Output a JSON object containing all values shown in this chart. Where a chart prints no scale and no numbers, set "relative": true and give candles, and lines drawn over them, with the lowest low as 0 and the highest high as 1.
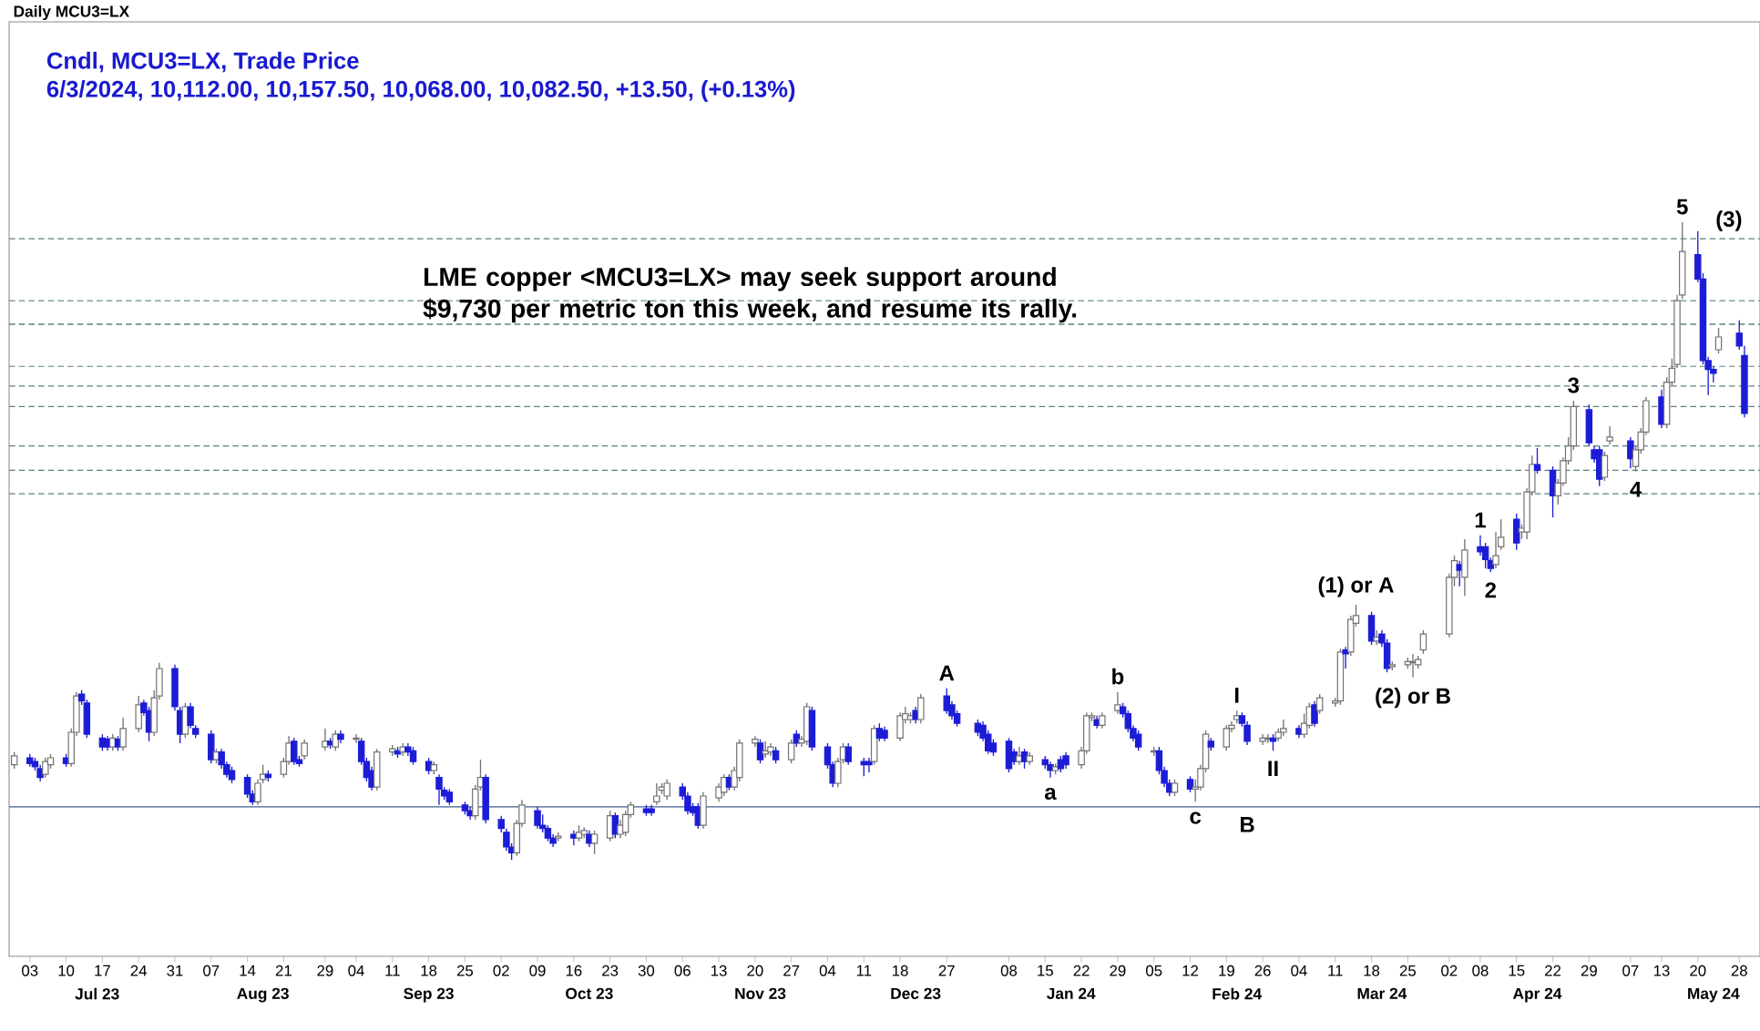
{
  "chart_data": {
    "type": "candlestick",
    "relative": true,
    "title": "Daily MCU3=LX",
    "subtitle": "Cndl, MCU3=LX, Trade Price",
    "annotations": [
      "6/3/2024, 10,112.00, 10,157.50, 10,068.00, 10,082.50, +13.50, (+0.13%)",
      "LME copper <MCU3=LX> may seek support around $9,730  per metric ton this week, and resume its rally.",
      {
        "text": "A",
        "x": "2023-12-27",
        "y": 0.269
      },
      {
        "text": "a",
        "x": "2024-01-16",
        "y": 0.129
      },
      {
        "text": "b",
        "x": "2024-01-29",
        "y": 0.263
      },
      {
        "text": "c",
        "x": "2024-02-13",
        "y": 0.091
      },
      {
        "text": "B",
        "x": "2024-02-23",
        "y": 0.083
      },
      {
        "text": "I",
        "x": "2024-02-21",
        "y": 0.234
      },
      {
        "text": "II",
        "x": "2024-02-28",
        "y": 0.171
      },
      {
        "text": "(1) or A",
        "x": "2024-03-15",
        "y": 0.4
      },
      {
        "text": "(2) or B",
        "x": "2024-03-26",
        "y": 0.286
      },
      {
        "text": "1",
        "x": "2024-04-08",
        "y": 0.509
      },
      {
        "text": "2",
        "x": "2024-04-10",
        "y": 0.451
      },
      {
        "text": "3",
        "x": "2024-04-26",
        "y": 0.72
      },
      {
        "text": "4",
        "x": "2024-05-08",
        "y": 0.609
      },
      {
        "text": "5",
        "x": "2024-05-17",
        "y": 1.0
      },
      {
        "text": "(3)",
        "x": "2024-05-26",
        "y": 0.974
      }
    ],
    "xlim": [
      "2023-06-29",
      "2024-06-01"
    ],
    "xticks": [
      {
        "value": "2023-07-03",
        "label": "03"
      },
      {
        "value": "2023-07-10",
        "label": "10"
      },
      {
        "value": "2023-07-17",
        "label": "17"
      },
      {
        "value": "2023-07-24",
        "label": "24"
      },
      {
        "value": "2023-07-31",
        "label": "31"
      },
      {
        "value": "2023-08-07",
        "label": "07"
      },
      {
        "value": "2023-08-14",
        "label": "14"
      },
      {
        "value": "2023-08-21",
        "label": "21"
      },
      {
        "value": "2023-08-29",
        "label": "29"
      },
      {
        "value": "2023-09-04",
        "label": "04"
      },
      {
        "value": "2023-09-11",
        "label": "11"
      },
      {
        "value": "2023-09-18",
        "label": "18"
      },
      {
        "value": "2023-09-25",
        "label": "25"
      },
      {
        "value": "2023-10-02",
        "label": "02"
      },
      {
        "value": "2023-10-09",
        "label": "09"
      },
      {
        "value": "2023-10-16",
        "label": "16"
      },
      {
        "value": "2023-10-23",
        "label": "23"
      },
      {
        "value": "2023-10-30",
        "label": "30"
      },
      {
        "value": "2023-11-06",
        "label": "06"
      },
      {
        "value": "2023-11-13",
        "label": "13"
      },
      {
        "value": "2023-11-20",
        "label": "20"
      },
      {
        "value": "2023-11-27",
        "label": "27"
      },
      {
        "value": "2023-12-04",
        "label": "04"
      },
      {
        "value": "2023-12-11",
        "label": "11"
      },
      {
        "value": "2023-12-18",
        "label": "18"
      },
      {
        "value": "2023-12-27",
        "label": "27"
      },
      {
        "value": "2024-01-08",
        "label": "08"
      },
      {
        "value": "2024-01-15",
        "label": "15"
      },
      {
        "value": "2024-01-22",
        "label": "22"
      },
      {
        "value": "2024-01-29",
        "label": "29"
      },
      {
        "value": "2024-02-05",
        "label": "05"
      },
      {
        "value": "2024-02-12",
        "label": "12"
      },
      {
        "value": "2024-02-19",
        "label": "19"
      },
      {
        "value": "2024-02-26",
        "label": "26"
      },
      {
        "value": "2024-03-04",
        "label": "04"
      },
      {
        "value": "2024-03-11",
        "label": "11"
      },
      {
        "value": "2024-03-18",
        "label": "18"
      },
      {
        "value": "2024-03-25",
        "label": "25"
      },
      {
        "value": "2024-04-02",
        "label": "02"
      },
      {
        "value": "2024-04-08",
        "label": "08"
      },
      {
        "value": "2024-04-15",
        "label": "15"
      },
      {
        "value": "2024-04-22",
        "label": "22"
      },
      {
        "value": "2024-04-29",
        "label": "29"
      },
      {
        "value": "2024-05-07",
        "label": "07"
      },
      {
        "value": "2024-05-13",
        "label": "13"
      },
      {
        "value": "2024-05-20",
        "label": "20"
      },
      {
        "value": "2024-05-28",
        "label": "28"
      }
    ],
    "x2lim": [
      "2023-06-29",
      "2024-06-01"
    ],
    "x2ticks": [
      {
        "value": "2023-07-16",
        "label": "Jul 23"
      },
      {
        "value": "2023-08-17",
        "label": "Aug 23"
      },
      {
        "value": "2023-09-18",
        "label": "Sep 23"
      },
      {
        "value": "2023-10-19",
        "label": "Oct 23"
      },
      {
        "value": "2023-11-21",
        "label": "Nov 23"
      },
      {
        "value": "2023-12-21",
        "label": "Dec 23"
      },
      {
        "value": "2024-01-20",
        "label": "Jan 24"
      },
      {
        "value": "2024-02-21",
        "label": "Feb 24"
      },
      {
        "value": "2024-03-20",
        "label": "Mar 24"
      },
      {
        "value": "2024-04-19",
        "label": "Apr 24"
      },
      {
        "value": "2024-05-23",
        "label": "May 24"
      }
    ],
    "tick_labels": "x",
    "ref_lines": [
      {
        "axis": "y",
        "value": 0.974,
        "color": "#5f8080",
        "line_style": "dashed"
      },
      {
        "axis": "y",
        "value": 0.877,
        "color": "#5f8080",
        "line_style": "dashed"
      },
      {
        "axis": "y",
        "value": 0.84,
        "color": "#5f8080",
        "line_style": "dashed"
      },
      {
        "axis": "y",
        "value": 0.774,
        "color": "#5f8080",
        "line_style": "dashed"
      },
      {
        "axis": "y",
        "value": 0.743,
        "color": "#5f8080",
        "line_style": "dashed"
      },
      {
        "axis": "y",
        "value": 0.711,
        "color": "#5f8080",
        "line_style": "dashed"
      },
      {
        "axis": "y",
        "value": 0.649,
        "color": "#5f8080",
        "line_style": "dashed"
      },
      {
        "axis": "y",
        "value": 0.611,
        "color": "#5f8080",
        "line_style": "dashed"
      },
      {
        "axis": "y",
        "value": 0.574,
        "color": "#5f8080",
        "line_style": "dashed"
      },
      {
        "axis": "y",
        "value": 0.083,
        "color": "#3f5f8f",
        "line_style": "solid"
      }
    ],
    "x": [
      "2023-06-30",
      "2023-07-03",
      "2023-07-04",
      "2023-07-05",
      "2023-07-06",
      "2023-07-07",
      "2023-07-10",
      "2023-07-11",
      "2023-07-12",
      "2023-07-13",
      "2023-07-14",
      "2023-07-17",
      "2023-07-18",
      "2023-07-19",
      "2023-07-20",
      "2023-07-21",
      "2023-07-24",
      "2023-07-25",
      "2023-07-26",
      "2023-07-27",
      "2023-07-28",
      "2023-07-31",
      "2023-08-01",
      "2023-08-02",
      "2023-08-03",
      "2023-08-04",
      "2023-08-07",
      "2023-08-08",
      "2023-08-09",
      "2023-08-10",
      "2023-08-11",
      "2023-08-14",
      "2023-08-15",
      "2023-08-16",
      "2023-08-17",
      "2023-08-18",
      "2023-08-21",
      "2023-08-22",
      "2023-08-23",
      "2023-08-24",
      "2023-08-25",
      "2023-08-29",
      "2023-08-30",
      "2023-08-31",
      "2023-09-01",
      "2023-09-04",
      "2023-09-05",
      "2023-09-06",
      "2023-09-07",
      "2023-09-08",
      "2023-09-11",
      "2023-09-12",
      "2023-09-13",
      "2023-09-14",
      "2023-09-15",
      "2023-09-18",
      "2023-09-19",
      "2023-09-20",
      "2023-09-21",
      "2023-09-22",
      "2023-09-25",
      "2023-09-26",
      "2023-09-27",
      "2023-09-28",
      "2023-09-29",
      "2023-10-02",
      "2023-10-03",
      "2023-10-04",
      "2023-10-05",
      "2023-10-06",
      "2023-10-09",
      "2023-10-10",
      "2023-10-11",
      "2023-10-12",
      "2023-10-13",
      "2023-10-16",
      "2023-10-17",
      "2023-10-18",
      "2023-10-19",
      "2023-10-20",
      "2023-10-23",
      "2023-10-24",
      "2023-10-25",
      "2023-10-26",
      "2023-10-27",
      "2023-10-30",
      "2023-10-31",
      "2023-11-01",
      "2023-11-02",
      "2023-11-03",
      "2023-11-06",
      "2023-11-07",
      "2023-11-08",
      "2023-11-09",
      "2023-11-10",
      "2023-11-13",
      "2023-11-14",
      "2023-11-15",
      "2023-11-16",
      "2023-11-17",
      "2023-11-20",
      "2023-11-21",
      "2023-11-22",
      "2023-11-23",
      "2023-11-24",
      "2023-11-27",
      "2023-11-28",
      "2023-11-29",
      "2023-11-30",
      "2023-12-01",
      "2023-12-04",
      "2023-12-05",
      "2023-12-06",
      "2023-12-07",
      "2023-12-08",
      "2023-12-11",
      "2023-12-12",
      "2023-12-13",
      "2023-12-14",
      "2023-12-15",
      "2023-12-18",
      "2023-12-19",
      "2023-12-20",
      "2023-12-21",
      "2023-12-22",
      "2023-12-27",
      "2023-12-28",
      "2023-12-29",
      "2024-01-02",
      "2024-01-03",
      "2024-01-04",
      "2024-01-05",
      "2024-01-08",
      "2024-01-09",
      "2024-01-10",
      "2024-01-11",
      "2024-01-12",
      "2024-01-15",
      "2024-01-16",
      "2024-01-17",
      "2024-01-18",
      "2024-01-19",
      "2024-01-22",
      "2024-01-23",
      "2024-01-24",
      "2024-01-25",
      "2024-01-26",
      "2024-01-29",
      "2024-01-30",
      "2024-01-31",
      "2024-02-01",
      "2024-02-02",
      "2024-02-05",
      "2024-02-06",
      "2024-02-07",
      "2024-02-08",
      "2024-02-09",
      "2024-02-12",
      "2024-02-13",
      "2024-02-14",
      "2024-02-15",
      "2024-02-16",
      "2024-02-19",
      "2024-02-20",
      "2024-02-21",
      "2024-02-22",
      "2024-02-23",
      "2024-02-26",
      "2024-02-27",
      "2024-02-28",
      "2024-02-29",
      "2024-03-01",
      "2024-03-04",
      "2024-03-05",
      "2024-03-06",
      "2024-03-07",
      "2024-03-08",
      "2024-03-11",
      "2024-03-12",
      "2024-03-13",
      "2024-03-14",
      "2024-03-15",
      "2024-03-18",
      "2024-03-19",
      "2024-03-20",
      "2024-03-21",
      "2024-03-22",
      "2024-03-25",
      "2024-03-26",
      "2024-03-27",
      "2024-03-28",
      "2024-04-02",
      "2024-04-03",
      "2024-04-04",
      "2024-04-05",
      "2024-04-08",
      "2024-04-09",
      "2024-04-10",
      "2024-04-11",
      "2024-04-12",
      "2024-04-15",
      "2024-04-16",
      "2024-04-17",
      "2024-04-18",
      "2024-04-19",
      "2024-04-22",
      "2024-04-23",
      "2024-04-24",
      "2024-04-25",
      "2024-04-26",
      "2024-04-29",
      "2024-04-30",
      "2024-05-01",
      "2024-05-02",
      "2024-05-03",
      "2024-05-07",
      "2024-05-08",
      "2024-05-09",
      "2024-05-10",
      "2024-05-13",
      "2024-05-14",
      "2024-05-15",
      "2024-05-16",
      "2024-05-17",
      "2024-05-20",
      "2024-05-21",
      "2024-05-22",
      "2024-05-23",
      "2024-05-24",
      "2024-05-28",
      "2024-05-29"
    ],
    "ohlc": [
      [
        0.149,
        0.169,
        0.143,
        0.163
      ],
      [
        0.16,
        0.166,
        0.146,
        0.151
      ],
      [
        0.154,
        0.16,
        0.14,
        0.146
      ],
      [
        0.143,
        0.149,
        0.123,
        0.129
      ],
      [
        0.134,
        0.16,
        0.129,
        0.154
      ],
      [
        0.149,
        0.166,
        0.143,
        0.16
      ],
      [
        0.16,
        0.166,
        0.146,
        0.151
      ],
      [
        0.151,
        0.206,
        0.146,
        0.2
      ],
      [
        0.2,
        0.263,
        0.194,
        0.257
      ],
      [
        0.26,
        0.266,
        0.243,
        0.249
      ],
      [
        0.246,
        0.251,
        0.191,
        0.197
      ],
      [
        0.191,
        0.197,
        0.171,
        0.177
      ],
      [
        0.189,
        0.194,
        0.171,
        0.177
      ],
      [
        0.177,
        0.197,
        0.171,
        0.191
      ],
      [
        0.189,
        0.194,
        0.171,
        0.177
      ],
      [
        0.177,
        0.223,
        0.171,
        0.206
      ],
      [
        0.206,
        0.257,
        0.2,
        0.243
      ],
      [
        0.246,
        0.251,
        0.226,
        0.231
      ],
      [
        0.234,
        0.24,
        0.186,
        0.2
      ],
      [
        0.2,
        0.266,
        0.194,
        0.254
      ],
      [
        0.257,
        0.309,
        0.251,
        0.3
      ],
      [
        0.3,
        0.306,
        0.234,
        0.24
      ],
      [
        0.234,
        0.24,
        0.183,
        0.197
      ],
      [
        0.197,
        0.246,
        0.191,
        0.24
      ],
      [
        0.24,
        0.246,
        0.206,
        0.211
      ],
      [
        0.206,
        0.211,
        0.191,
        0.197
      ],
      [
        0.197,
        0.203,
        0.151,
        0.157
      ],
      [
        0.157,
        0.174,
        0.151,
        0.169
      ],
      [
        0.169,
        0.174,
        0.143,
        0.149
      ],
      [
        0.149,
        0.154,
        0.129,
        0.134
      ],
      [
        0.14,
        0.146,
        0.12,
        0.126
      ],
      [
        0.129,
        0.134,
        0.097,
        0.103
      ],
      [
        0.103,
        0.109,
        0.086,
        0.091
      ],
      [
        0.091,
        0.126,
        0.086,
        0.12
      ],
      [
        0.126,
        0.149,
        0.12,
        0.134
      ],
      [
        0.134,
        0.14,
        0.123,
        0.129
      ],
      [
        0.134,
        0.16,
        0.129,
        0.154
      ],
      [
        0.154,
        0.194,
        0.149,
        0.183
      ],
      [
        0.186,
        0.191,
        0.149,
        0.154
      ],
      [
        0.157,
        0.163,
        0.146,
        0.151
      ],
      [
        0.163,
        0.189,
        0.157,
        0.183
      ],
      [
        0.177,
        0.206,
        0.171,
        0.186
      ],
      [
        0.186,
        0.191,
        0.174,
        0.18
      ],
      [
        0.177,
        0.203,
        0.171,
        0.197
      ],
      [
        0.197,
        0.203,
        0.183,
        0.189
      ],
      [
        0.189,
        0.197,
        0.183,
        0.191
      ],
      [
        0.186,
        0.191,
        0.149,
        0.154
      ],
      [
        0.154,
        0.16,
        0.123,
        0.129
      ],
      [
        0.14,
        0.146,
        0.109,
        0.114
      ],
      [
        0.114,
        0.174,
        0.109,
        0.169
      ],
      [
        0.169,
        0.18,
        0.163,
        0.174
      ],
      [
        0.171,
        0.177,
        0.16,
        0.166
      ],
      [
        0.169,
        0.183,
        0.163,
        0.177
      ],
      [
        0.177,
        0.183,
        0.163,
        0.169
      ],
      [
        0.171,
        0.177,
        0.149,
        0.154
      ],
      [
        0.154,
        0.16,
        0.134,
        0.14
      ],
      [
        0.14,
        0.154,
        0.134,
        0.149
      ],
      [
        0.129,
        0.134,
        0.086,
        0.111
      ],
      [
        0.109,
        0.114,
        0.094,
        0.1
      ],
      [
        0.106,
        0.111,
        0.086,
        0.091
      ],
      [
        0.086,
        0.091,
        0.071,
        0.077
      ],
      [
        0.077,
        0.083,
        0.063,
        0.069
      ],
      [
        0.069,
        0.117,
        0.063,
        0.111
      ],
      [
        0.114,
        0.157,
        0.109,
        0.129
      ],
      [
        0.129,
        0.134,
        0.057,
        0.063
      ],
      [
        0.063,
        0.069,
        0.043,
        0.049
      ],
      [
        0.043,
        0.049,
        0.014,
        0.02
      ],
      [
        0.02,
        0.026,
        0.0,
        0.011
      ],
      [
        0.011,
        0.063,
        0.006,
        0.057
      ],
      [
        0.057,
        0.094,
        0.051,
        0.086
      ],
      [
        0.077,
        0.083,
        0.049,
        0.054
      ],
      [
        0.054,
        0.071,
        0.043,
        0.049
      ],
      [
        0.049,
        0.054,
        0.029,
        0.034
      ],
      [
        0.034,
        0.04,
        0.02,
        0.026
      ],
      [
        0.034,
        0.043,
        0.029,
        0.037
      ],
      [
        0.04,
        0.046,
        0.023,
        0.034
      ],
      [
        0.034,
        0.054,
        0.029,
        0.043
      ],
      [
        0.04,
        0.051,
        0.034,
        0.046
      ],
      [
        0.04,
        0.046,
        0.02,
        0.026
      ],
      [
        0.026,
        0.046,
        0.009,
        0.04
      ],
      [
        0.034,
        0.077,
        0.029,
        0.069
      ],
      [
        0.069,
        0.074,
        0.034,
        0.04
      ],
      [
        0.04,
        0.063,
        0.034,
        0.054
      ],
      [
        0.043,
        0.077,
        0.037,
        0.071
      ],
      [
        0.071,
        0.091,
        0.066,
        0.086
      ],
      [
        0.08,
        0.086,
        0.069,
        0.074
      ],
      [
        0.08,
        0.086,
        0.069,
        0.074
      ],
      [
        0.091,
        0.12,
        0.086,
        0.1
      ],
      [
        0.109,
        0.12,
        0.103,
        0.114
      ],
      [
        0.1,
        0.126,
        0.094,
        0.12
      ],
      [
        0.114,
        0.12,
        0.094,
        0.1
      ],
      [
        0.1,
        0.106,
        0.071,
        0.077
      ],
      [
        0.083,
        0.089,
        0.069,
        0.074
      ],
      [
        0.083,
        0.089,
        0.049,
        0.054
      ],
      [
        0.054,
        0.106,
        0.049,
        0.1
      ],
      [
        0.097,
        0.12,
        0.091,
        0.114
      ],
      [
        0.106,
        0.134,
        0.1,
        0.129
      ],
      [
        0.129,
        0.134,
        0.109,
        0.114
      ],
      [
        0.114,
        0.146,
        0.109,
        0.14
      ],
      [
        0.129,
        0.189,
        0.123,
        0.183
      ],
      [
        0.183,
        0.194,
        0.177,
        0.189
      ],
      [
        0.183,
        0.189,
        0.151,
        0.157
      ],
      [
        0.166,
        0.186,
        0.16,
        0.171
      ],
      [
        0.169,
        0.183,
        0.163,
        0.177
      ],
      [
        0.171,
        0.177,
        0.151,
        0.157
      ],
      [
        0.157,
        0.189,
        0.151,
        0.183
      ],
      [
        0.197,
        0.203,
        0.177,
        0.183
      ],
      [
        0.183,
        0.194,
        0.177,
        0.189
      ],
      [
        0.186,
        0.246,
        0.18,
        0.24
      ],
      [
        0.234,
        0.24,
        0.171,
        0.177
      ],
      [
        0.177,
        0.183,
        0.143,
        0.149
      ],
      [
        0.149,
        0.154,
        0.114,
        0.12
      ],
      [
        0.12,
        0.16,
        0.114,
        0.154
      ],
      [
        0.157,
        0.183,
        0.151,
        0.177
      ],
      [
        0.177,
        0.183,
        0.149,
        0.154
      ],
      [
        0.154,
        0.16,
        0.131,
        0.149
      ],
      [
        0.154,
        0.16,
        0.137,
        0.149
      ],
      [
        0.154,
        0.211,
        0.149,
        0.206
      ],
      [
        0.206,
        0.214,
        0.186,
        0.191
      ],
      [
        0.203,
        0.209,
        0.186,
        0.191
      ],
      [
        0.191,
        0.231,
        0.186,
        0.226
      ],
      [
        0.22,
        0.24,
        0.214,
        0.229
      ],
      [
        0.22,
        0.231,
        0.214,
        0.226
      ],
      [
        0.234,
        0.24,
        0.214,
        0.22
      ],
      [
        0.22,
        0.26,
        0.214,
        0.254
      ],
      [
        0.257,
        0.269,
        0.229,
        0.234
      ],
      [
        0.243,
        0.249,
        0.22,
        0.226
      ],
      [
        0.229,
        0.234,
        0.209,
        0.214
      ],
      [
        0.214,
        0.22,
        0.194,
        0.2
      ],
      [
        0.211,
        0.217,
        0.186,
        0.191
      ],
      [
        0.197,
        0.203,
        0.166,
        0.171
      ],
      [
        0.183,
        0.189,
        0.163,
        0.169
      ],
      [
        0.186,
        0.191,
        0.137,
        0.143
      ],
      [
        0.169,
        0.174,
        0.149,
        0.154
      ],
      [
        0.154,
        0.177,
        0.149,
        0.163
      ],
      [
        0.169,
        0.174,
        0.143,
        0.154
      ],
      [
        0.154,
        0.169,
        0.149,
        0.163
      ],
      [
        0.157,
        0.163,
        0.143,
        0.149
      ],
      [
        0.149,
        0.154,
        0.129,
        0.14
      ],
      [
        0.14,
        0.151,
        0.134,
        0.146
      ],
      [
        0.157,
        0.163,
        0.137,
        0.143
      ],
      [
        0.163,
        0.169,
        0.143,
        0.149
      ],
      [
        0.149,
        0.177,
        0.143,
        0.171
      ],
      [
        0.171,
        0.231,
        0.166,
        0.226
      ],
      [
        0.223,
        0.231,
        0.217,
        0.226
      ],
      [
        0.22,
        0.226,
        0.206,
        0.211
      ],
      [
        0.211,
        0.231,
        0.206,
        0.226
      ],
      [
        0.234,
        0.263,
        0.229,
        0.243
      ],
      [
        0.24,
        0.246,
        0.223,
        0.229
      ],
      [
        0.229,
        0.234,
        0.2,
        0.206
      ],
      [
        0.206,
        0.211,
        0.186,
        0.191
      ],
      [
        0.197,
        0.203,
        0.171,
        0.177
      ],
      [
        0.169,
        0.177,
        0.163,
        0.171
      ],
      [
        0.171,
        0.177,
        0.134,
        0.14
      ],
      [
        0.14,
        0.146,
        0.114,
        0.12
      ],
      [
        0.12,
        0.126,
        0.1,
        0.106
      ],
      [
        0.106,
        0.126,
        0.1,
        0.12
      ],
      [
        0.126,
        0.131,
        0.106,
        0.111
      ],
      [
        0.111,
        0.126,
        0.091,
        0.114
      ],
      [
        0.114,
        0.149,
        0.109,
        0.143
      ],
      [
        0.143,
        0.203,
        0.137,
        0.197
      ],
      [
        0.186,
        0.191,
        0.171,
        0.177
      ],
      [
        0.177,
        0.211,
        0.171,
        0.206
      ],
      [
        0.206,
        0.217,
        0.2,
        0.211
      ],
      [
        0.22,
        0.234,
        0.214,
        0.226
      ],
      [
        0.226,
        0.231,
        0.209,
        0.214
      ],
      [
        0.211,
        0.217,
        0.18,
        0.186
      ],
      [
        0.186,
        0.197,
        0.18,
        0.191
      ],
      [
        0.189,
        0.197,
        0.183,
        0.191
      ],
      [
        0.191,
        0.197,
        0.171,
        0.186
      ],
      [
        0.191,
        0.206,
        0.186,
        0.2
      ],
      [
        0.2,
        0.22,
        0.194,
        0.206
      ],
      [
        0.206,
        0.211,
        0.191,
        0.197
      ],
      [
        0.197,
        0.229,
        0.191,
        0.214
      ],
      [
        0.211,
        0.246,
        0.206,
        0.24
      ],
      [
        0.243,
        0.249,
        0.209,
        0.214
      ],
      [
        0.234,
        0.26,
        0.229,
        0.254
      ],
      [
        0.246,
        0.254,
        0.24,
        0.249
      ],
      [
        0.249,
        0.331,
        0.243,
        0.326
      ],
      [
        0.329,
        0.334,
        0.3,
        0.323
      ],
      [
        0.326,
        0.383,
        0.32,
        0.377
      ],
      [
        0.371,
        0.4,
        0.366,
        0.383
      ],
      [
        0.383,
        0.389,
        0.337,
        0.343
      ],
      [
        0.343,
        0.36,
        0.337,
        0.349
      ],
      [
        0.354,
        0.36,
        0.334,
        0.34
      ],
      [
        0.34,
        0.346,
        0.294,
        0.3
      ],
      [
        0.303,
        0.311,
        0.297,
        0.306
      ],
      [
        0.306,
        0.317,
        0.3,
        0.311
      ],
      [
        0.309,
        0.323,
        0.286,
        0.311
      ],
      [
        0.306,
        0.32,
        0.3,
        0.314
      ],
      [
        0.329,
        0.36,
        0.323,
        0.354
      ],
      [
        0.354,
        0.449,
        0.349,
        0.443
      ],
      [
        0.443,
        0.477,
        0.429,
        0.469
      ],
      [
        0.463,
        0.469,
        0.429,
        0.454
      ],
      [
        0.443,
        0.503,
        0.414,
        0.486
      ],
      [
        0.491,
        0.509,
        0.477,
        0.483
      ],
      [
        0.491,
        0.497,
        0.457,
        0.471
      ],
      [
        0.469,
        0.474,
        0.451,
        0.457
      ],
      [
        0.463,
        0.514,
        0.457,
        0.477
      ],
      [
        0.491,
        0.534,
        0.486,
        0.506
      ],
      [
        0.534,
        0.543,
        0.486,
        0.497
      ],
      [
        0.514,
        0.526,
        0.503,
        0.52
      ],
      [
        0.514,
        0.583,
        0.503,
        0.577
      ],
      [
        0.577,
        0.634,
        0.571,
        0.62
      ],
      [
        0.62,
        0.646,
        0.606,
        0.611
      ],
      [
        0.611,
        0.617,
        0.537,
        0.571
      ],
      [
        0.571,
        0.597,
        0.557,
        0.591
      ],
      [
        0.591,
        0.631,
        0.586,
        0.626
      ],
      [
        0.626,
        0.663,
        0.62,
        0.649
      ],
      [
        0.649,
        0.72,
        0.643,
        0.711
      ],
      [
        0.706,
        0.714,
        0.649,
        0.654
      ],
      [
        0.643,
        0.649,
        0.623,
        0.629
      ],
      [
        0.643,
        0.649,
        0.586,
        0.597
      ],
      [
        0.6,
        0.64,
        0.594,
        0.634
      ],
      [
        0.657,
        0.68,
        0.651,
        0.663
      ],
      [
        0.657,
        0.663,
        0.614,
        0.629
      ],
      [
        0.617,
        0.649,
        0.609,
        0.643
      ],
      [
        0.643,
        0.677,
        0.637,
        0.671
      ],
      [
        0.671,
        0.726,
        0.666,
        0.72
      ],
      [
        0.726,
        0.737,
        0.677,
        0.683
      ],
      [
        0.683,
        0.757,
        0.677,
        0.749
      ],
      [
        0.749,
        0.786,
        0.743,
        0.771
      ],
      [
        0.777,
        0.886,
        0.771,
        0.877
      ],
      [
        0.886,
        1.0,
        0.88,
        0.954
      ],
      [
        0.949,
        0.986,
        0.906,
        0.911
      ],
      [
        0.911,
        0.92,
        0.777,
        0.783
      ],
      [
        0.783,
        0.789,
        0.729,
        0.769
      ],
      [
        0.769,
        0.774,
        0.749,
        0.763
      ],
      [
        0.8,
        0.834,
        0.794,
        0.82
      ],
      [
        0.826,
        0.846,
        0.8,
        0.806
      ],
      [
        0.791,
        0.806,
        0.694,
        0.7
      ]
    ]
  }
}
